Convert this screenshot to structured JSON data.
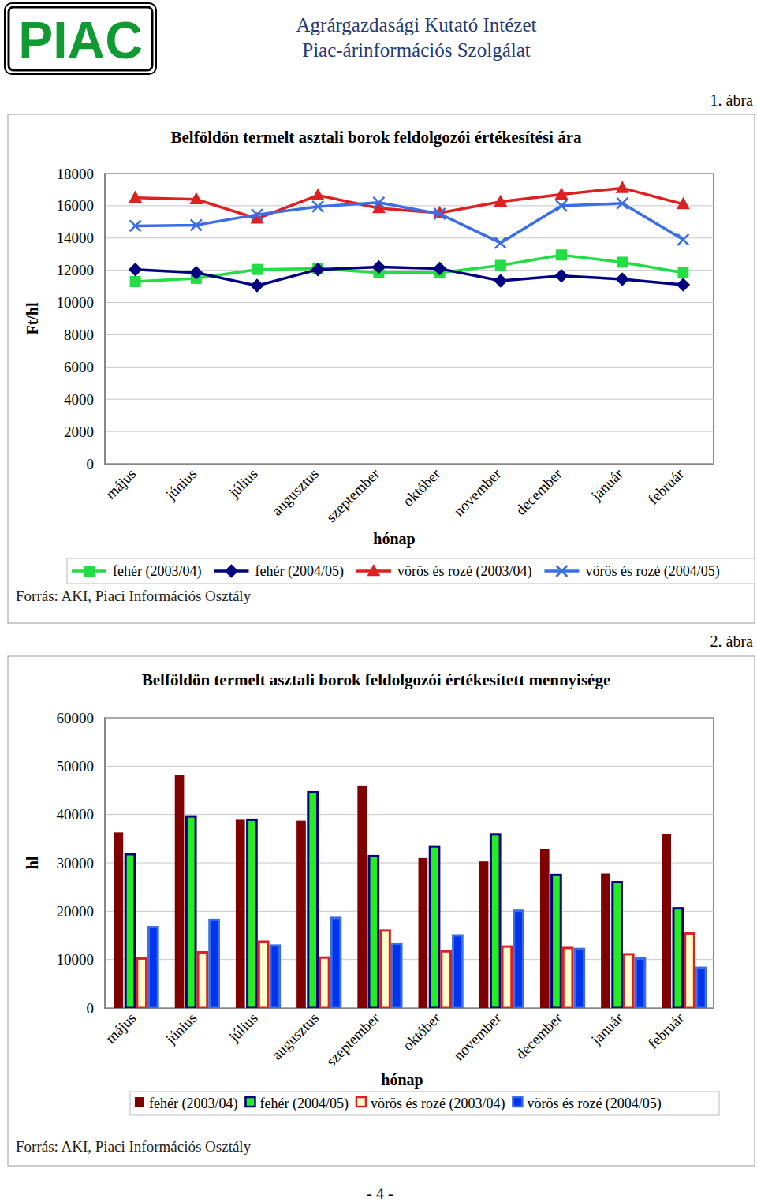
{
  "page": {
    "logo": "PIAC",
    "institute": "Agrárgazdasági Kutató Intézet",
    "service": "Piac-árinformációs Szolgálat",
    "page_number": "- 4 -"
  },
  "chart_data": [
    {
      "type": "line",
      "figure_label": "1. ábra",
      "title": "Belföldön termelt asztali borok feldolgozói értékesítési ára",
      "x_label": "hónap",
      "y_label": "Ft/hl",
      "categories": [
        "május",
        "június",
        "július",
        "augusztus",
        "szeptember",
        "október",
        "november",
        "december",
        "január",
        "február"
      ],
      "series": [
        {
          "name": "fehér (2003/04)",
          "color": "#22dd44",
          "marker": "square",
          "values": [
            11300,
            11500,
            12050,
            12100,
            11850,
            11850,
            12300,
            12950,
            12500,
            11850
          ]
        },
        {
          "name": "fehér (2004/05)",
          "color": "#000080",
          "marker": "diamond",
          "values": [
            12050,
            11850,
            11050,
            12050,
            12200,
            12100,
            11350,
            11650,
            11450,
            11100
          ]
        },
        {
          "name": "vörös és rozé (2003/04)",
          "color": "#e02020",
          "marker": "triangle",
          "values": [
            16500,
            16400,
            15200,
            16650,
            15850,
            15550,
            16250,
            16700,
            17100,
            16100
          ]
        },
        {
          "name": "vörös és rozé (2004/05)",
          "color": "#3a6ee8",
          "marker": "cross",
          "values": [
            14750,
            14800,
            15450,
            15950,
            16200,
            15500,
            13700,
            16000,
            16150,
            13900
          ]
        }
      ],
      "ylim": [
        0,
        18000
      ],
      "yticks": [
        0,
        2000,
        4000,
        6000,
        8000,
        10000,
        12000,
        14000,
        16000,
        18000
      ],
      "grid": true,
      "legend": "bottom",
      "source": "Forrás: AKI, Piaci Információs Osztály"
    },
    {
      "type": "bar",
      "figure_label": "2. ábra",
      "title": "Belföldön termelt asztali borok feldolgozói értékesített mennyisége",
      "x_label": "hónap",
      "y_label": "hl",
      "categories": [
        "május",
        "június",
        "július",
        "augusztus",
        "szeptember",
        "október",
        "november",
        "december",
        "január",
        "február"
      ],
      "series": [
        {
          "name": "fehér (2003/04)",
          "color": "#800000",
          "values": [
            36300,
            48100,
            38900,
            38700,
            46000,
            31000,
            30300,
            32800,
            27800,
            35900
          ]
        },
        {
          "name": "fehér (2004/05)",
          "color": "#22ee22",
          "values": [
            31800,
            39600,
            38900,
            44600,
            31400,
            33400,
            35900,
            27500,
            26000,
            20600
          ]
        },
        {
          "name": "vörös és rozé (2003/04)",
          "color": "#ffffcc",
          "values": [
            10200,
            11500,
            13700,
            10400,
            16000,
            11700,
            12700,
            12400,
            11100,
            15400
          ]
        },
        {
          "name": "vörös és rozé (2004/05)",
          "color": "#0033ee",
          "values": [
            16700,
            18200,
            12900,
            18600,
            13300,
            15000,
            20100,
            12200,
            10200,
            8300
          ]
        }
      ],
      "ylim": [
        0,
        60000
      ],
      "yticks": [
        0,
        10000,
        20000,
        30000,
        40000,
        50000,
        60000
      ],
      "grid": true,
      "legend": "bottom",
      "source": "Forrás: AKI, Piaci Információs Osztály"
    }
  ]
}
